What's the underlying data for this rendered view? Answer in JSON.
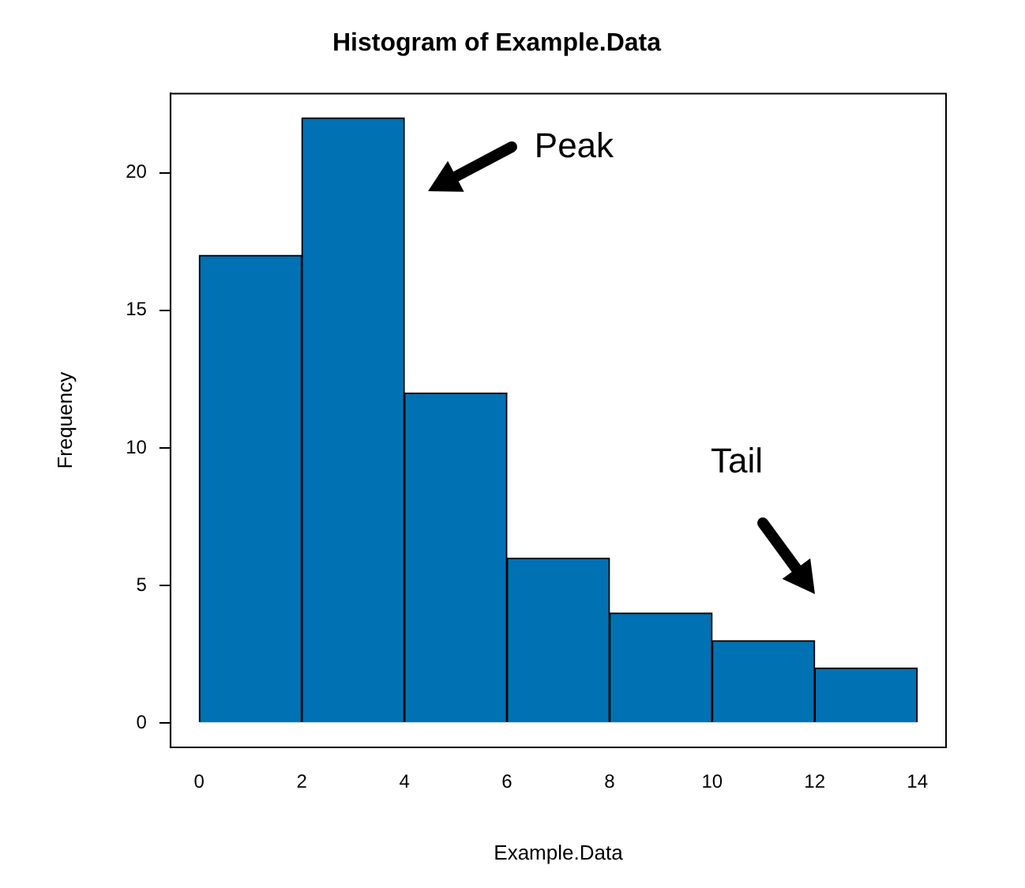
{
  "chart_data": {
    "type": "histogram",
    "title": "Histogram of Example.Data",
    "xlabel": "Example.Data",
    "ylabel": "Frequency",
    "bins": [
      0,
      2,
      4,
      6,
      8,
      10,
      12,
      14
    ],
    "values": [
      17,
      22,
      12,
      6,
      4,
      3,
      2
    ],
    "color": "#0071b3",
    "xlim": [
      -0.56,
      14.56
    ],
    "ylim": [
      -0.88,
      22.88
    ],
    "xticks": [
      0,
      2,
      4,
      6,
      8,
      10,
      12,
      14
    ],
    "yticks": [
      0,
      5,
      10,
      15,
      20
    ],
    "grid": false,
    "legend": false,
    "annotations": [
      "Peak",
      "Tail"
    ]
  }
}
